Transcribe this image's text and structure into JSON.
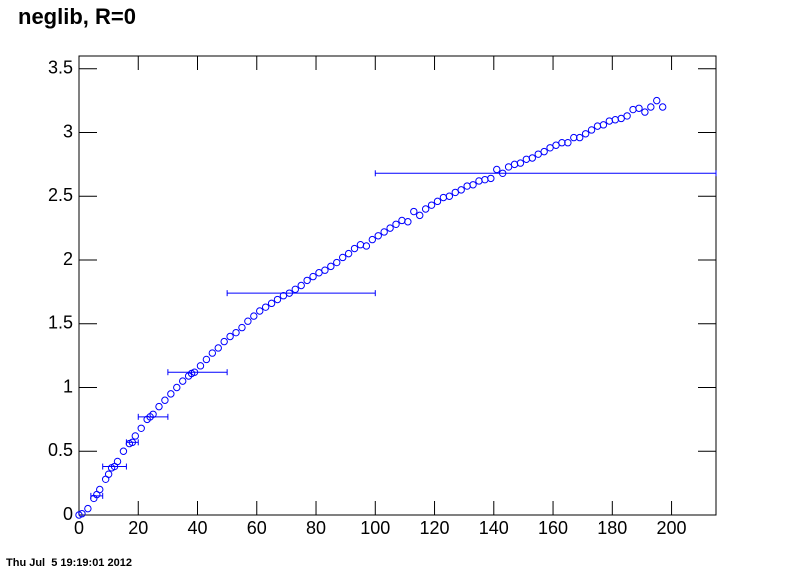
{
  "chart_data": {
    "type": "scatter",
    "title": "neglib, R=0",
    "color": "#0000ff",
    "x": [
      0,
      1,
      3,
      5,
      6,
      7,
      9,
      10,
      11,
      12,
      13,
      15,
      17,
      18,
      19,
      21,
      23,
      24,
      25,
      27,
      29,
      31,
      33,
      35,
      37,
      38,
      39,
      41,
      43,
      45,
      47,
      49,
      51,
      53,
      55,
      57,
      59,
      61,
      63,
      65,
      67,
      69,
      71,
      73,
      75,
      77,
      79,
      81,
      83,
      85,
      87,
      89,
      91,
      93,
      95,
      97,
      99,
      101,
      103,
      105,
      107,
      109,
      111,
      113,
      115,
      117,
      119,
      121,
      123,
      125,
      127,
      129,
      131,
      133,
      135,
      137,
      139,
      141,
      143,
      145,
      147,
      149,
      151,
      153,
      155,
      157,
      159,
      161,
      163,
      165,
      167,
      169,
      171,
      173,
      175,
      177,
      179,
      181,
      183,
      185,
      187,
      189,
      191,
      193,
      195,
      197
    ],
    "values": [
      0,
      0.01,
      0.05,
      0.13,
      0.16,
      0.2,
      0.28,
      0.32,
      0.37,
      0.38,
      0.42,
      0.5,
      0.56,
      0.57,
      0.62,
      0.68,
      0.75,
      0.77,
      0.79,
      0.85,
      0.9,
      0.95,
      1.0,
      1.05,
      1.09,
      1.11,
      1.12,
      1.17,
      1.22,
      1.27,
      1.31,
      1.36,
      1.4,
      1.43,
      1.47,
      1.52,
      1.56,
      1.6,
      1.63,
      1.66,
      1.69,
      1.72,
      1.74,
      1.77,
      1.8,
      1.84,
      1.87,
      1.9,
      1.92,
      1.95,
      1.98,
      2.02,
      2.05,
      2.09,
      2.12,
      2.11,
      2.16,
      2.19,
      2.22,
      2.25,
      2.28,
      2.31,
      2.3,
      2.38,
      2.35,
      2.4,
      2.43,
      2.46,
      2.49,
      2.5,
      2.53,
      2.55,
      2.58,
      2.59,
      2.62,
      2.63,
      2.64,
      2.71,
      2.68,
      2.73,
      2.75,
      2.76,
      2.79,
      2.8,
      2.83,
      2.85,
      2.88,
      2.9,
      2.92,
      2.92,
      2.96,
      2.96,
      2.99,
      3.02,
      3.05,
      3.06,
      3.09,
      3.1,
      3.11,
      3.13,
      3.18,
      3.19,
      3.16,
      3.2,
      3.25,
      3.2
    ],
    "bin_values": [
      0.15,
      0.38,
      0.57,
      0.77,
      1.12,
      1.74,
      2.68
    ],
    "bin_x_low": [
      4,
      8,
      16,
      20,
      30,
      50,
      100
    ],
    "bin_x_high": [
      8,
      16,
      20,
      30,
      50,
      100,
      216
    ],
    "xlim": [
      0,
      215
    ],
    "ylim": [
      0,
      3.6
    ],
    "xticks": [
      0,
      20,
      40,
      60,
      80,
      100,
      120,
      140,
      160,
      180,
      200
    ],
    "yticks": [
      0,
      0.5,
      1,
      1.5,
      2,
      2.5,
      3,
      3.5
    ]
  },
  "timestamp": "Thu Jul  5 19:19:01 2012"
}
